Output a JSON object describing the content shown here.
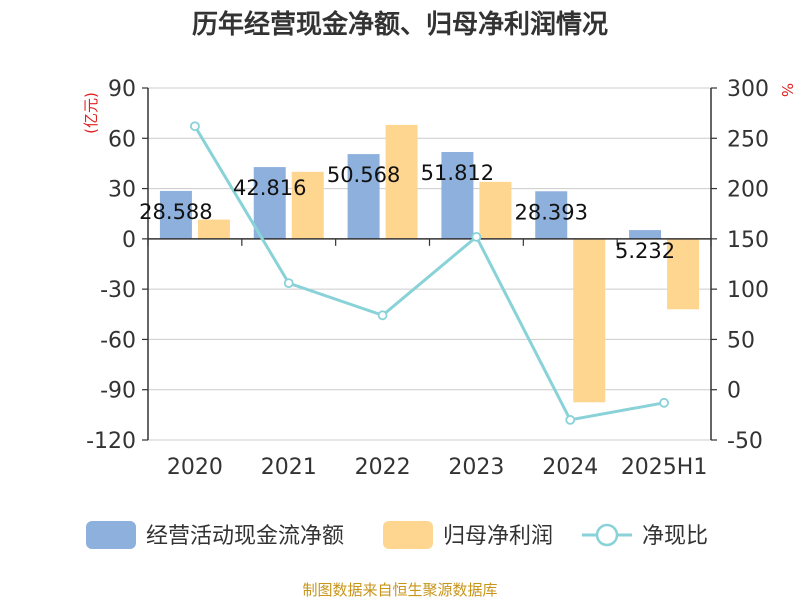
{
  "chart_data": {
    "type": "bar",
    "title": "历年经营现金净额、归母净利润情况",
    "categories": [
      "2020",
      "2021",
      "2022",
      "2023",
      "2024",
      "2025H1"
    ],
    "series": [
      {
        "name": "经营活动现金流净额",
        "kind": "bar",
        "axis": "left",
        "color": "#8eb0dd",
        "values": [
          28.588,
          42.816,
          50.568,
          51.812,
          28.393,
          5.232
        ]
      },
      {
        "name": "归母净利润",
        "kind": "bar",
        "axis": "left",
        "color": "#ffd690",
        "values": [
          11.5,
          40.0,
          68.0,
          34.0,
          -97.5,
          -42.0
        ]
      },
      {
        "name": "净现比",
        "kind": "line",
        "axis": "right",
        "color": "#88d2d8",
        "values": [
          262,
          106,
          74,
          152,
          -30,
          -13
        ]
      }
    ],
    "data_labels": [
      "28.588",
      "42.816",
      "50.568",
      "51.812",
      "28.393",
      "5.232"
    ],
    "y_left": {
      "label": "(亿元)",
      "ylim": [
        -120,
        90
      ],
      "ticks": [
        90,
        60,
        30,
        0,
        -30,
        -60,
        -90,
        -120
      ]
    },
    "y_right": {
      "label": "%",
      "ylim": [
        -50,
        300
      ],
      "ticks": [
        300,
        250,
        200,
        150,
        100,
        50,
        0,
        -50
      ]
    },
    "grid": true,
    "legend_position": "bottom",
    "source": "制图数据来自恒生聚源数据库"
  }
}
